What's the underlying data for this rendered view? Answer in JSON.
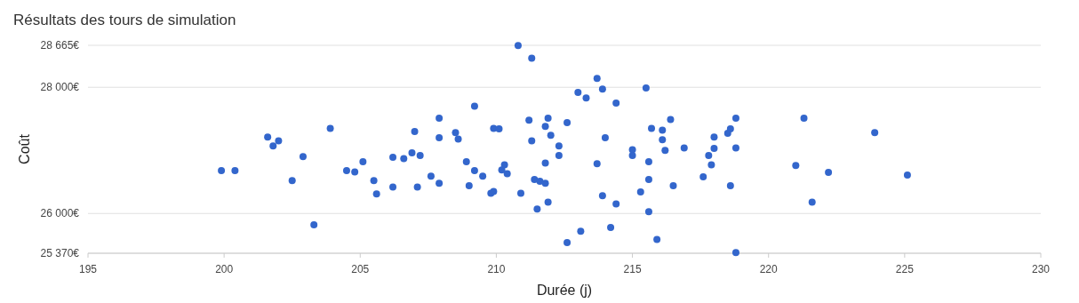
{
  "chart_data": {
    "type": "scatter",
    "title": "Résultats des tours de simulation",
    "xlabel": "Durée (j)",
    "ylabel": "Coût",
    "xlim": [
      195,
      230
    ],
    "xticks": [
      195,
      200,
      205,
      210,
      215,
      220,
      225,
      230
    ],
    "ylim": [
      25370,
      28665
    ],
    "yticks": [
      {
        "value": 25370,
        "label": "25 370€"
      },
      {
        "value": 26000,
        "label": "26 000€"
      },
      {
        "value": 28000,
        "label": "28 000€"
      },
      {
        "value": 28665,
        "label": "28 665€"
      }
    ],
    "grid": "y",
    "marker": "circle",
    "series": [
      {
        "color": "#3366cc",
        "x": [
          199.9,
          200.4,
          201.6,
          201.8,
          202.0,
          202.5,
          202.9,
          203.3,
          203.9,
          204.5,
          204.8,
          205.1,
          205.5,
          205.6,
          206.2,
          206.2,
          206.6,
          206.9,
          207.0,
          207.1,
          207.2,
          207.6,
          207.9,
          207.9,
          207.9,
          208.5,
          208.6,
          208.9,
          209.0,
          209.2,
          209.2,
          209.5,
          209.8,
          209.9,
          209.9,
          210.1,
          210.2,
          210.3,
          210.4,
          210.8,
          210.9,
          211.2,
          211.3,
          211.3,
          211.4,
          211.5,
          211.6,
          211.8,
          211.8,
          211.8,
          211.9,
          211.9,
          212.0,
          212.3,
          212.3,
          212.6,
          212.6,
          213.0,
          213.1,
          213.3,
          213.7,
          213.7,
          213.9,
          213.9,
          214.0,
          214.2,
          214.4,
          214.4,
          215.0,
          215.0,
          215.3,
          215.5,
          215.6,
          215.6,
          215.6,
          215.7,
          215.9,
          216.1,
          216.1,
          216.2,
          216.4,
          216.5,
          216.9,
          217.6,
          217.8,
          217.9,
          218.0,
          218.0,
          218.6,
          218.5,
          218.6,
          218.8,
          218.8,
          218.8,
          221.0,
          221.3,
          221.6,
          222.2,
          223.9,
          225.1
        ],
        "values": [
          26680,
          26680,
          27210,
          27070,
          27150,
          26520,
          26900,
          25820,
          27350,
          26680,
          26660,
          26820,
          26520,
          26310,
          26890,
          26420,
          26870,
          26960,
          27300,
          26420,
          26920,
          26590,
          27200,
          27510,
          26480,
          27280,
          27180,
          26820,
          26440,
          26680,
          27700,
          26590,
          26320,
          26350,
          27350,
          27340,
          26690,
          26770,
          26630,
          28660,
          26320,
          27480,
          27150,
          28460,
          26540,
          26070,
          26510,
          26800,
          26480,
          27380,
          27510,
          26180,
          27240,
          26920,
          27070,
          27440,
          25540,
          27920,
          25720,
          27830,
          28140,
          26790,
          27970,
          26280,
          27200,
          25780,
          27750,
          26150,
          27010,
          26920,
          26340,
          27990,
          26030,
          26540,
          26820,
          27350,
          25590,
          27320,
          27170,
          27000,
          27490,
          26440,
          27040,
          26580,
          26920,
          26770,
          27210,
          27030,
          26440,
          27270,
          27340,
          27040,
          27510,
          25380,
          26760,
          27510,
          26180,
          26650,
          27280,
          26610
        ]
      }
    ]
  }
}
